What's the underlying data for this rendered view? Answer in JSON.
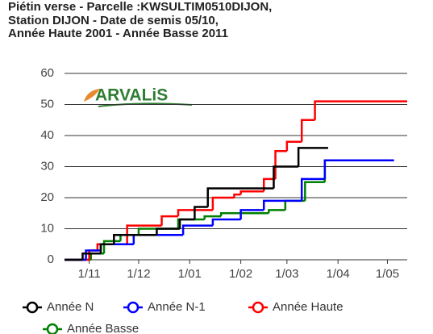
{
  "chart_data": {
    "type": "step",
    "title": [
      "Piétin verse - Parcelle :KWSULTIM0510DIJON,",
      "Station DIJON - Date de semis 05/10,",
      "Année Haute 2001 - Année Basse 2011"
    ],
    "logo": "ARVALiS",
    "xlim": [
      "17/10",
      "13/05"
    ],
    "xticks": [
      "1/11",
      "1/12",
      "1/01",
      "1/02",
      "1/03",
      "1/04",
      "1/05"
    ],
    "ylim": [
      0,
      60
    ],
    "yticks": [
      0,
      10,
      20,
      30,
      40,
      50,
      60
    ],
    "grid": true,
    "series": [
      {
        "name": "Année N",
        "color": "#000000",
        "x": [
          "17/10",
          "28/10",
          "8/11",
          "16/11",
          "12/12",
          "26/12",
          "4/01",
          "12/01",
          "21/02",
          "8/03",
          "26/03"
        ],
        "values": [
          0,
          2,
          5,
          8,
          10,
          13,
          17,
          23,
          30,
          36,
          36
        ]
      },
      {
        "name": "Année N-1",
        "color": "#0000ff",
        "x": [
          "17/10",
          "30/10",
          "8/11",
          "20/11",
          "28/11",
          "28/12",
          "15/01",
          "1/02",
          "15/02",
          "10/03",
          "24/03",
          "5/05"
        ],
        "values": [
          0,
          3,
          5,
          5,
          8,
          11,
          13,
          16,
          19,
          26,
          32,
          32
        ]
      },
      {
        "name": "Année Haute",
        "color": "#ff0000",
        "x": [
          "17/10",
          "1/11",
          "6/11",
          "24/11",
          "15/12",
          "25/12",
          "15/01",
          "28/01",
          "1/02",
          "15/02",
          "22/02",
          "1/03",
          "10/03",
          "18/03",
          "13/05"
        ],
        "values": [
          0,
          3,
          5,
          11,
          14,
          16,
          20,
          21,
          22,
          26,
          35,
          38,
          45,
          51,
          51
        ]
      },
      {
        "name": "Année Basse",
        "color": "#008000",
        "x": [
          "17/10",
          "2/11",
          "10/11",
          "20/11",
          "1/12",
          "25/12",
          "10/01",
          "20/01",
          "18/02",
          "28/02",
          "12/03",
          "24/03"
        ],
        "values": [
          0,
          2,
          6,
          8,
          10,
          13,
          14,
          15,
          16,
          19,
          25,
          32
        ]
      }
    ]
  }
}
